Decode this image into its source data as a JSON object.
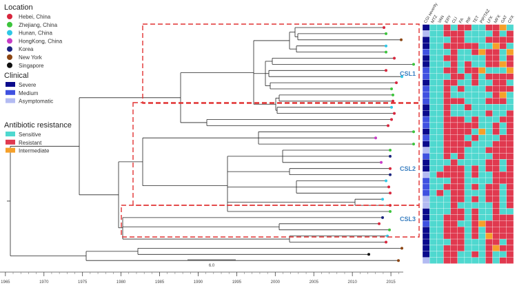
{
  "legend": {
    "location": {
      "title": "Location",
      "items": [
        {
          "label": "Hebei, China",
          "color": "#d7263d"
        },
        {
          "label": "Zhejiang, China",
          "color": "#3cc43c"
        },
        {
          "label": "Hunan, China",
          "color": "#2ec7e6"
        },
        {
          "label": "HongKong, China",
          "color": "#c63cc6"
        },
        {
          "label": "Korea",
          "color": "#1a237e"
        },
        {
          "label": "New York",
          "color": "#8b4513"
        },
        {
          "label": "Singapore",
          "color": "#111111"
        }
      ]
    },
    "clinical": {
      "title": "Clinical",
      "items": [
        {
          "label": "Severe",
          "color": "#0a0a8c"
        },
        {
          "label": "Medium",
          "color": "#3f51e0"
        },
        {
          "label": "Asymptomatic",
          "color": "#b3bbf2"
        }
      ]
    },
    "resistance": {
      "title": "Antibiotic resistance",
      "items": [
        {
          "label": "Sensitive",
          "color": "#4fd8cf"
        },
        {
          "label": "Resistant",
          "color": "#e0394f"
        },
        {
          "label": "Intermediate",
          "color": "#f5a02a"
        }
      ]
    }
  },
  "clades": [
    "CSL1",
    "CSL2",
    "CSL3"
  ],
  "heatmap_columns": [
    "CGI severity",
    "MTZ",
    "VAN",
    "ERY",
    "CLI",
    "FA",
    "RIF",
    "TET",
    "PIP/TAZ",
    "LFX",
    "MFX",
    "GAT",
    "CFX"
  ],
  "scale_bar": "6.0",
  "time_axis": {
    "xlim": [
      1964.3,
      2016.6
    ],
    "xticks": [
      1965,
      1970,
      1975,
      1980,
      1985,
      1990,
      1995,
      2000,
      2005,
      2010,
      2015
    ]
  }
}
